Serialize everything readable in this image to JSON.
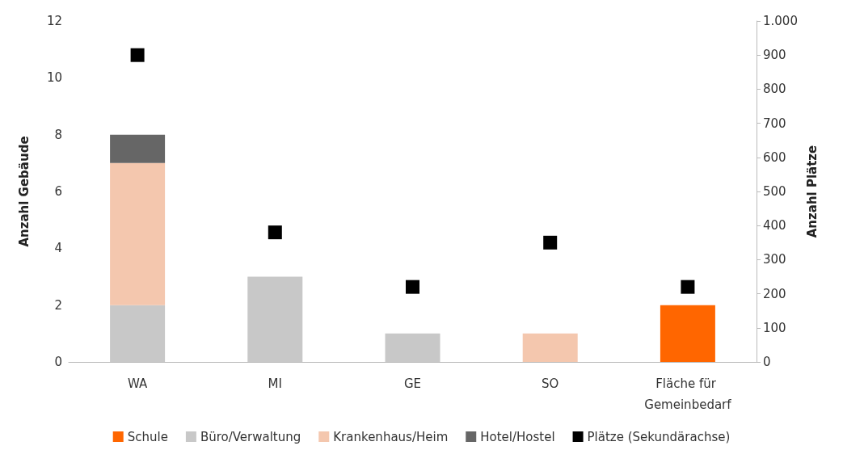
{
  "chart_data": {
    "type": "bar",
    "stacked": true,
    "categories": [
      "WA",
      "MI",
      "GE",
      "SO",
      "Fläche für Gemeinbedarf"
    ],
    "ylabel": "Anzahl Gebäude",
    "y2label": "Anzahl Plätze",
    "ylim": [
      0,
      12
    ],
    "yticks": [
      0,
      2,
      4,
      6,
      8,
      10,
      12
    ],
    "y2lim": [
      0,
      1000
    ],
    "y2ticks": [
      0,
      100,
      200,
      300,
      400,
      500,
      600,
      700,
      800,
      900,
      {
        "value": 1000,
        "label": "1.000"
      }
    ],
    "series": [
      {
        "name": "Schule",
        "color": "#ff6600",
        "values": [
          0,
          0,
          0,
          0,
          2
        ]
      },
      {
        "name": "Büro/Verwaltung",
        "color": "#c8c8c8",
        "values": [
          2,
          3,
          1,
          0,
          0
        ]
      },
      {
        "name": "Krankenhaus/Heim",
        "color": "#f4c7ae",
        "values": [
          5,
          0,
          0,
          1,
          0
        ]
      },
      {
        "name": "Hotel/Hostel",
        "color": "#666666",
        "values": [
          1,
          0,
          0,
          0,
          0
        ]
      },
      {
        "name": "Plätze (Sekundärachse)",
        "type": "scatter",
        "axis": "y2",
        "marker": "square",
        "color": "#000000",
        "x": [
          "WA",
          "MI",
          "GE",
          "SO",
          "Fläche für Gemeinbedarf"
        ],
        "values": [
          900,
          380,
          220,
          350,
          220
        ]
      }
    ],
    "grid": false,
    "legend": "bottom"
  }
}
